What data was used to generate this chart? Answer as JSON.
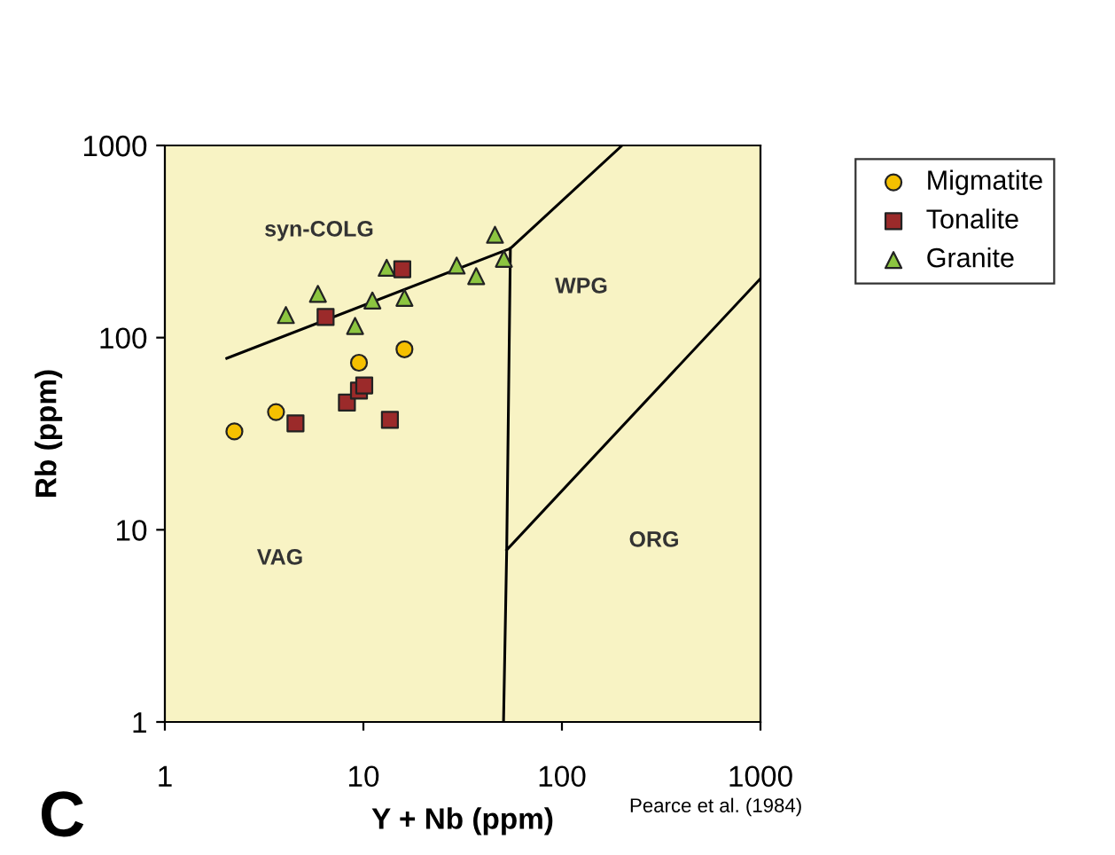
{
  "chart_data": {
    "type": "scatter",
    "xlabel": "Y + Nb (ppm)",
    "ylabel": "Rb (ppm)",
    "log": "xy",
    "xlim": [
      1,
      1000
    ],
    "xticks": [
      1,
      10,
      100,
      1000
    ],
    "ylim": [
      1,
      1000
    ],
    "yticks": [
      1,
      10,
      100,
      1000
    ],
    "grid": false,
    "legend": "top right",
    "series": [
      {
        "name": "Migmatite",
        "color": "#f5c000",
        "marker": "circle",
        "x": [
          2.24,
          3.63,
          9.5,
          16.1
        ],
        "values": [
          32.5,
          41,
          74,
          87
        ]
      },
      {
        "name": "Tonalite",
        "color": "#9b2a2a",
        "marker": "square",
        "x": [
          4.55,
          6.45,
          15.7,
          8.26,
          9.5,
          10.1,
          13.6
        ],
        "values": [
          35.8,
          128,
          227,
          45.9,
          53,
          56.4,
          37.3
        ]
      },
      {
        "name": "Granite",
        "color": "#8cc540",
        "marker": "triangle",
        "x": [
          4.07,
          5.9,
          9.08,
          11.1,
          13.1,
          16.1,
          29.5,
          37,
          46,
          51
        ],
        "values": [
          131,
          169,
          115,
          156,
          231,
          161,
          237,
          209,
          343,
          257
        ]
      },
      {
        "type": "line",
        "color": "#000000",
        "marker": "none",
        "x": [
          2.05,
          55,
          201,
          null,
          55,
          52.7,
          50.8,
          null,
          52.7,
          1000
        ],
        "values": [
          78,
          291,
          1000,
          null,
          291,
          7.86,
          1,
          null,
          7.86,
          203
        ]
      }
    ],
    "annotations": [
      "syn-COLG",
      "WPG",
      "VAG",
      "ORG",
      "C",
      "Pearce et al. (1984)"
    ]
  }
}
